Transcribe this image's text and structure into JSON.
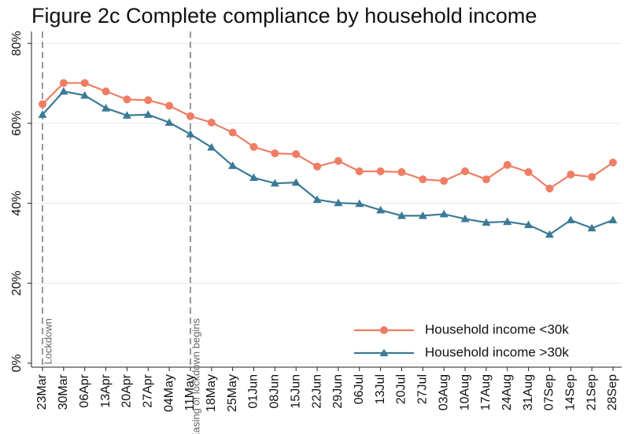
{
  "chart_data": {
    "type": "line",
    "title": "Figure 2c Complete compliance by household income",
    "categories": [
      "23Mar",
      "30Mar",
      "06Apr",
      "13Apr",
      "20Apr",
      "27Apr",
      "04May",
      "11May",
      "18May",
      "25May",
      "01Jun",
      "08Jun",
      "15Jun",
      "22Jun",
      "29Jun",
      "06Jul",
      "13Jul",
      "20Jul",
      "27Jul",
      "03Aug",
      "10Aug",
      "17Aug",
      "24Aug",
      "31Aug",
      "07Sep",
      "14Sep",
      "21Sep",
      "28Sep"
    ],
    "series": [
      {
        "name": "Household income <30k",
        "color": "#ef7d65",
        "marker": "circle",
        "values": [
          64.8,
          70.1,
          70.1,
          68,
          66,
          65.8,
          64.4,
          61.8,
          60.2,
          57.7,
          54.1,
          52.5,
          52.3,
          49.2,
          50.6,
          48,
          48,
          47.8,
          46,
          45.6,
          48,
          46,
          49.6,
          47.8,
          43.7,
          47.2,
          46.6,
          50.2
        ]
      },
      {
        "name": "Household income >30k",
        "color": "#3b7a96",
        "marker": "triangle",
        "values": [
          62.2,
          68,
          67,
          63.8,
          62,
          62.2,
          60.2,
          57.3,
          54,
          49.4,
          46.4,
          45,
          45.2,
          40.9,
          40.1,
          39.9,
          38.3,
          36.9,
          36.9,
          37.3,
          36.1,
          35.2,
          35.4,
          34.6,
          32.2,
          35.8,
          33.8,
          35.8
        ]
      }
    ],
    "ylim": [
      -1,
      83
    ],
    "yticks": [
      {
        "value": 0,
        "label": "0%"
      },
      {
        "value": 20,
        "label": "20%"
      },
      {
        "value": 40,
        "label": "40%"
      },
      {
        "value": 60,
        "label": "60%"
      },
      {
        "value": 80,
        "label": "80%"
      }
    ],
    "grid": true,
    "legend": "lower right",
    "annotations": [
      {
        "x": "23Mar",
        "text": "Lockdown"
      },
      {
        "x": "11May",
        "text": "Easing of lockdown begins"
      }
    ]
  }
}
